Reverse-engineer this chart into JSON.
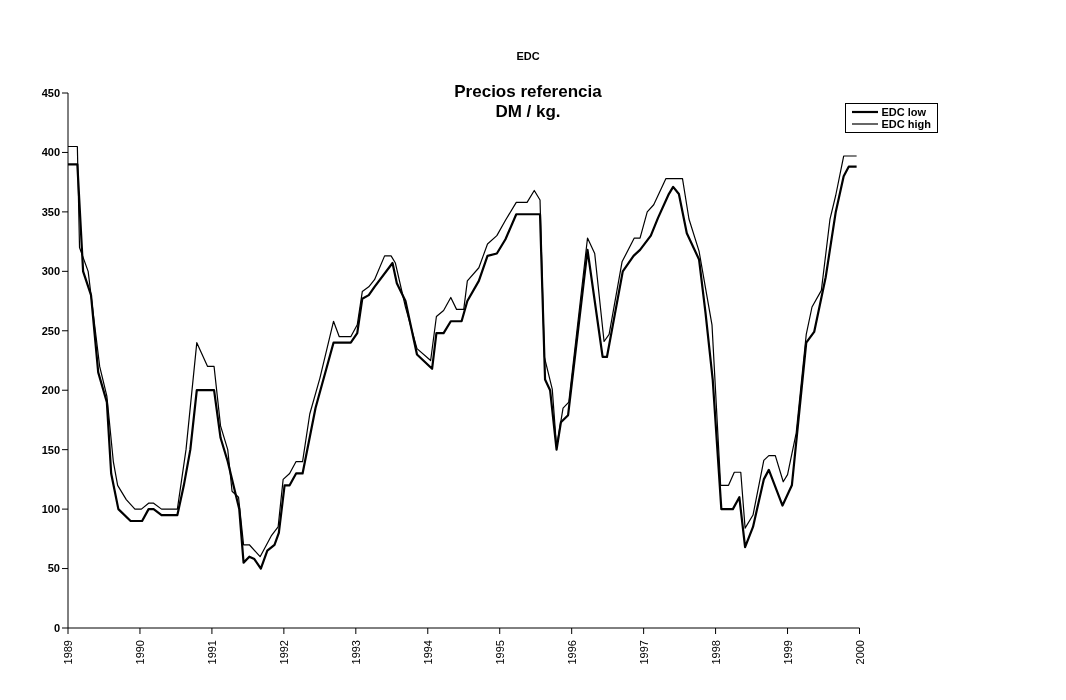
{
  "chart_data": {
    "type": "line",
    "title": "EDC",
    "subtitle": "Precios referencia\nDM / kg.",
    "xlim": [
      1989,
      2000
    ],
    "xticks": [
      1989,
      1990,
      1991,
      1992,
      1993,
      1994,
      1995,
      1996,
      1997,
      1998,
      1999,
      2000
    ],
    "ylim": [
      0,
      450
    ],
    "yticks": [
      0,
      50,
      100,
      150,
      200,
      250,
      300,
      350,
      400,
      450
    ],
    "grid": false,
    "legend": "top right",
    "marker": "none",
    "line_style": "solid",
    "series": [
      {
        "name": "EDC low",
        "color": "#000000",
        "x": [
          1989.0,
          1989.13,
          1989.21,
          1989.32,
          1989.42,
          1989.54,
          1989.6,
          1989.7,
          1989.87,
          1990.03,
          1990.12,
          1990.19,
          1990.3,
          1990.52,
          1990.61,
          1990.7,
          1990.79,
          1991.03,
          1991.12,
          1991.22,
          1991.34,
          1991.38,
          1991.44,
          1991.52,
          1991.59,
          1991.68,
          1991.77,
          1991.87,
          1991.93,
          1992.01,
          1992.08,
          1992.17,
          1992.26,
          1992.44,
          1992.69,
          1992.93,
          1993.02,
          1993.09,
          1993.18,
          1993.26,
          1993.51,
          1993.57,
          1993.69,
          1993.85,
          1994.06,
          1994.12,
          1994.22,
          1994.32,
          1994.47,
          1994.55,
          1994.71,
          1994.83,
          1994.96,
          1995.08,
          1995.23,
          1995.56,
          1995.63,
          1995.7,
          1995.79,
          1995.85,
          1995.95,
          1996.22,
          1996.43,
          1996.49,
          1996.71,
          1996.86,
          1996.95,
          1997.1,
          1997.2,
          1997.35,
          1997.41,
          1997.49,
          1997.6,
          1997.77,
          1997.86,
          1997.96,
          1998.08,
          1998.24,
          1998.33,
          1998.41,
          1998.52,
          1998.67,
          1998.74,
          1998.93,
          1999.06,
          1999.26,
          1999.37,
          1999.53,
          1999.67,
          1999.78,
          1999.85,
          1999.96
        ],
        "values": [
          390,
          390,
          300,
          280,
          215,
          190,
          130,
          100,
          90,
          90,
          100,
          100,
          95,
          95,
          120,
          150,
          200,
          200,
          160,
          140,
          110,
          100,
          55,
          60,
          58,
          50,
          65,
          70,
          80,
          120,
          120,
          130,
          130,
          185,
          240,
          240,
          248,
          277,
          280,
          287,
          307,
          290,
          275,
          230,
          218,
          248,
          248,
          258,
          258,
          275,
          292,
          313,
          315,
          327,
          348,
          348,
          209,
          200,
          150,
          173,
          179,
          318,
          228,
          228,
          300,
          313,
          318,
          330,
          345,
          365,
          371,
          365,
          332,
          310,
          265,
          209,
          100,
          100,
          110,
          68,
          85,
          125,
          133,
          103,
          120,
          240,
          249,
          295,
          350,
          380,
          388,
          388
        ]
      },
      {
        "name": "EDC high",
        "color": "#000000",
        "x": [
          1989.0,
          1989.13,
          1989.16,
          1989.28,
          1989.38,
          1989.44,
          1989.54,
          1989.63,
          1989.69,
          1989.81,
          1989.93,
          1990.02,
          1990.12,
          1990.19,
          1990.3,
          1990.52,
          1990.64,
          1990.79,
          1990.94,
          1991.03,
          1991.12,
          1991.22,
          1991.28,
          1991.37,
          1991.44,
          1991.52,
          1991.67,
          1991.83,
          1991.92,
          1991.99,
          1992.08,
          1992.17,
          1992.26,
          1992.36,
          1992.5,
          1992.69,
          1992.77,
          1992.93,
          1993.02,
          1993.09,
          1993.18,
          1993.26,
          1993.4,
          1993.49,
          1993.55,
          1993.69,
          1993.85,
          1994.04,
          1994.12,
          1994.22,
          1994.32,
          1994.4,
          1994.5,
          1994.55,
          1994.71,
          1994.77,
          1994.83,
          1994.96,
          1995.08,
          1995.23,
          1995.38,
          1995.48,
          1995.56,
          1995.62,
          1995.73,
          1995.79,
          1995.88,
          1995.96,
          1996.22,
          1996.32,
          1996.45,
          1996.52,
          1996.7,
          1996.87,
          1996.95,
          1997.05,
          1997.14,
          1997.31,
          1997.54,
          1997.63,
          1997.77,
          1997.95,
          1998.07,
          1998.18,
          1998.26,
          1998.35,
          1998.41,
          1998.52,
          1998.67,
          1998.74,
          1998.83,
          1998.94,
          1999.0,
          1999.12,
          1999.26,
          1999.34,
          1999.47,
          1999.59,
          1999.67,
          1999.78,
          1999.96
        ],
        "values": [
          405,
          405,
          320,
          300,
          250,
          220,
          195,
          140,
          120,
          108,
          100,
          100,
          105,
          105,
          100,
          100,
          150,
          240,
          220,
          220,
          170,
          150,
          115,
          110,
          70,
          70,
          60,
          78,
          85,
          125,
          130,
          140,
          140,
          180,
          210,
          258,
          245,
          245,
          255,
          283,
          287,
          293,
          313,
          313,
          307,
          270,
          235,
          225,
          262,
          267,
          278,
          268,
          268,
          292,
          303,
          313,
          323,
          330,
          343,
          358,
          358,
          368,
          360,
          228,
          201,
          152,
          185,
          190,
          328,
          315,
          241,
          247,
          308,
          328,
          328,
          350,
          356,
          378,
          378,
          344,
          317,
          255,
          120,
          120,
          131,
          131,
          84,
          95,
          141,
          145,
          145,
          123,
          129,
          164,
          247,
          270,
          284,
          344,
          364,
          397,
          397
        ]
      }
    ]
  }
}
